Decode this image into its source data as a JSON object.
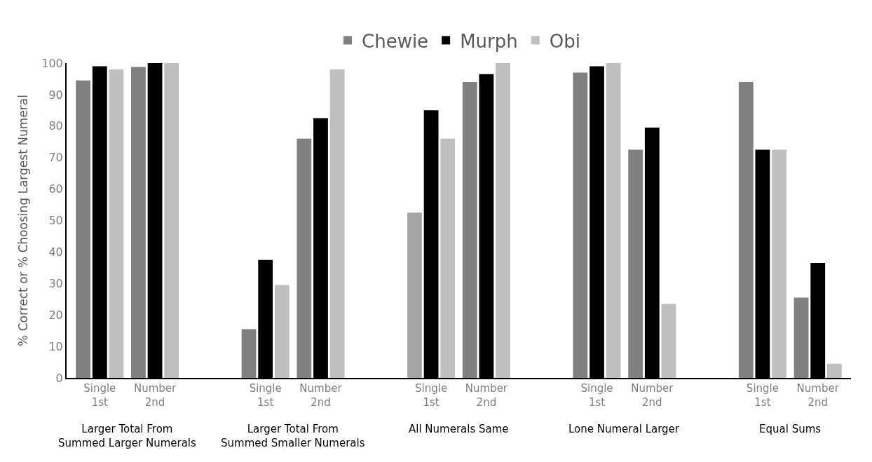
{
  "chart_data": {
    "type": "bar",
    "ylabel": "% Correct or % Choosing Largest Numeral",
    "categories": [
      "Single\n1st",
      "Number\n2nd",
      null,
      "Single\n1st",
      "Number\n2nd",
      null,
      "Single\n1st",
      "Number\n2nd",
      null,
      "Single\n1st",
      "Number\n2nd",
      null,
      "Single\n1st",
      "Number\n2nd"
    ],
    "series": [
      {
        "name": "Chewie",
        "color": "#808080",
        "colors": [
          "#808080",
          "#808080",
          "#808080",
          "#808080",
          "#808080",
          "#808080",
          "#a6a6a6",
          "#808080",
          "#808080",
          "#808080",
          "#808080",
          "#808080",
          "#808080",
          "#808080"
        ],
        "values": [
          94.5,
          98.8,
          null,
          15.5,
          76,
          null,
          52.5,
          94,
          null,
          97,
          72.5,
          null,
          94,
          25.5
        ]
      },
      {
        "name": "Murph",
        "color": "#000000",
        "values": [
          99,
          100,
          null,
          37.5,
          82.5,
          null,
          85,
          96.5,
          null,
          99,
          79.5,
          null,
          72.5,
          36.5
        ]
      },
      {
        "name": "Obi",
        "color": "#bfbfbf",
        "values": [
          98,
          100,
          null,
          29.5,
          98,
          null,
          76,
          100,
          null,
          100,
          23.5,
          null,
          72.5,
          4.5
        ]
      }
    ],
    "annotations": [
      "Larger Total From\nSummed Larger Numerals",
      "Larger Total From\nSummed Smaller Numerals",
      "All Numerals Same",
      "Lone Numeral Larger",
      "Equal Sums"
    ],
    "ylim": [
      0,
      100
    ],
    "yticks": [
      0,
      10,
      20,
      30,
      40,
      50,
      60,
      70,
      80,
      90,
      100
    ],
    "legend": "top"
  }
}
